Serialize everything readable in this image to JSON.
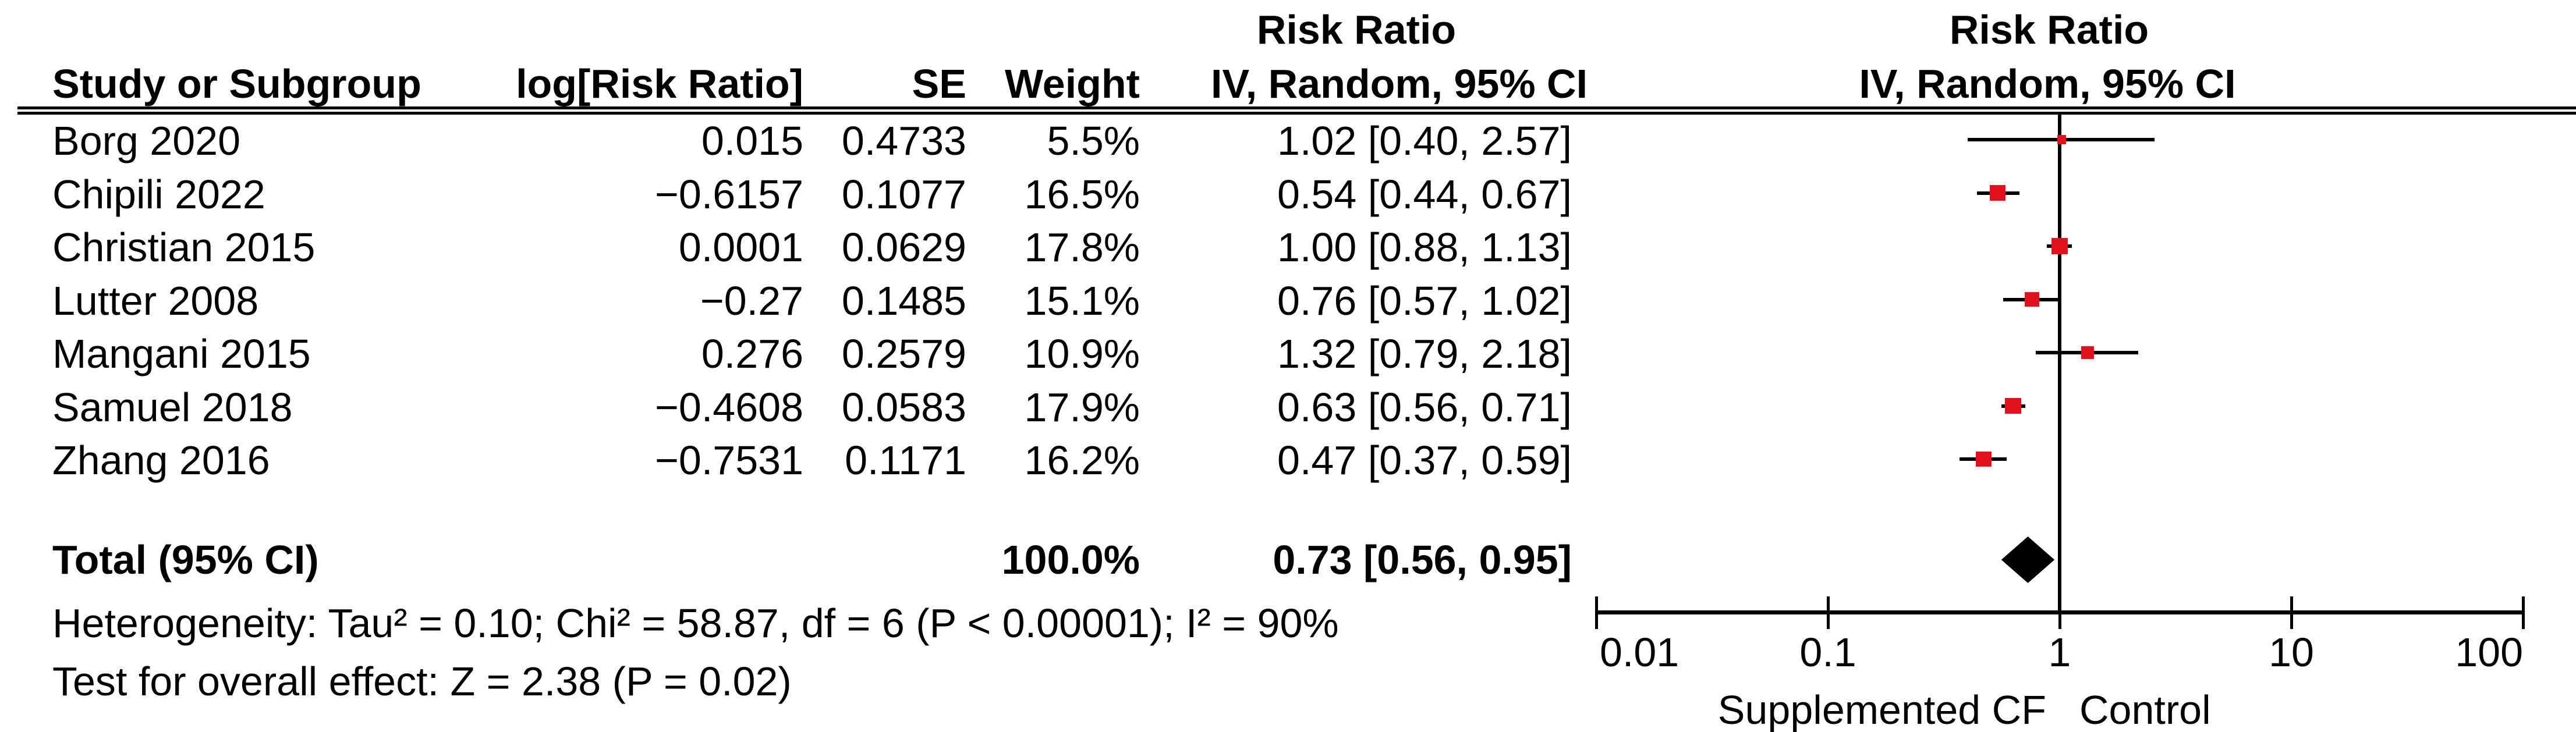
{
  "table": {
    "effect_header": "Risk Ratio",
    "headers": {
      "study": "Study or Subgroup",
      "log_rr": "log[Risk Ratio]",
      "se": "SE",
      "weight": "Weight",
      "ci": "IV, Random, 95% CI"
    },
    "rows": [
      {
        "study": "Borg 2020",
        "log_rr": "0.015",
        "se": "0.4733",
        "weight": "5.5%",
        "ci_text": "1.02 [0.40, 2.57]"
      },
      {
        "study": "Chipili 2022",
        "log_rr": "−0.6157",
        "se": "0.1077",
        "weight": "16.5%",
        "ci_text": "0.54 [0.44, 0.67]"
      },
      {
        "study": "Christian 2015",
        "log_rr": "0.0001",
        "se": "0.0629",
        "weight": "17.8%",
        "ci_text": "1.00 [0.88, 1.13]"
      },
      {
        "study": "Lutter 2008",
        "log_rr": "−0.27",
        "se": "0.1485",
        "weight": "15.1%",
        "ci_text": "0.76 [0.57, 1.02]"
      },
      {
        "study": "Mangani 2015",
        "log_rr": "0.276",
        "se": "0.2579",
        "weight": "10.9%",
        "ci_text": "1.32 [0.79, 2.18]"
      },
      {
        "study": "Samuel 2018",
        "log_rr": "−0.4608",
        "se": "0.0583",
        "weight": "17.9%",
        "ci_text": "0.63 [0.56, 0.71]"
      },
      {
        "study": "Zhang 2016",
        "log_rr": "−0.7531",
        "se": "0.1171",
        "weight": "16.2%",
        "ci_text": "0.47 [0.37, 0.59]"
      }
    ],
    "total_row": {
      "label": "Total (95% CI)",
      "weight": "100.0%",
      "ci_text": "0.73 [0.56, 0.95]"
    },
    "footnotes": {
      "heterogeneity": "Heterogeneity: Tau² = 0.10; Chi² = 58.87, df = 6 (P < 0.00001); I² = 90%",
      "overall_effect": "Test for overall effect: Z = 2.38 (P = 0.02)"
    }
  },
  "chart_data": {
    "type": "forest",
    "effect_measure": "Risk Ratio",
    "model": "IV, Random",
    "plot_header_line1": "Risk Ratio",
    "plot_header_line2": "IV, Random, 95% CI",
    "x_axis": {
      "scale": "log",
      "min": 0.01,
      "max": 100,
      "tick_values": [
        0.01,
        0.1,
        1,
        10,
        100
      ],
      "tick_labels": [
        "0.01",
        "0.1",
        "1",
        "10",
        "100"
      ]
    },
    "null_line_value": 1,
    "favours_left": "Supplemented CF",
    "favours_right": "Control",
    "series": [
      {
        "name": "Borg 2020",
        "rr": 1.02,
        "ci_low": 0.4,
        "ci_high": 2.57,
        "weight_pct": 5.5
      },
      {
        "name": "Chipili 2022",
        "rr": 0.54,
        "ci_low": 0.44,
        "ci_high": 0.67,
        "weight_pct": 16.5
      },
      {
        "name": "Christian 2015",
        "rr": 1.0,
        "ci_low": 0.88,
        "ci_high": 1.13,
        "weight_pct": 17.8
      },
      {
        "name": "Lutter 2008",
        "rr": 0.76,
        "ci_low": 0.57,
        "ci_high": 1.02,
        "weight_pct": 15.1
      },
      {
        "name": "Mangani 2015",
        "rr": 1.32,
        "ci_low": 0.79,
        "ci_high": 2.18,
        "weight_pct": 10.9
      },
      {
        "name": "Samuel 2018",
        "rr": 0.63,
        "ci_low": 0.56,
        "ci_high": 0.71,
        "weight_pct": 17.9
      },
      {
        "name": "Zhang 2016",
        "rr": 0.47,
        "ci_low": 0.37,
        "ci_high": 0.59,
        "weight_pct": 16.2
      }
    ],
    "total": {
      "name": "Total (95% CI)",
      "rr": 0.73,
      "ci_low": 0.56,
      "ci_high": 0.95,
      "weight_pct": 100.0
    },
    "marker_color": "#E3101B",
    "ci_line_color": "#000000",
    "diamond_color": "#000000"
  }
}
